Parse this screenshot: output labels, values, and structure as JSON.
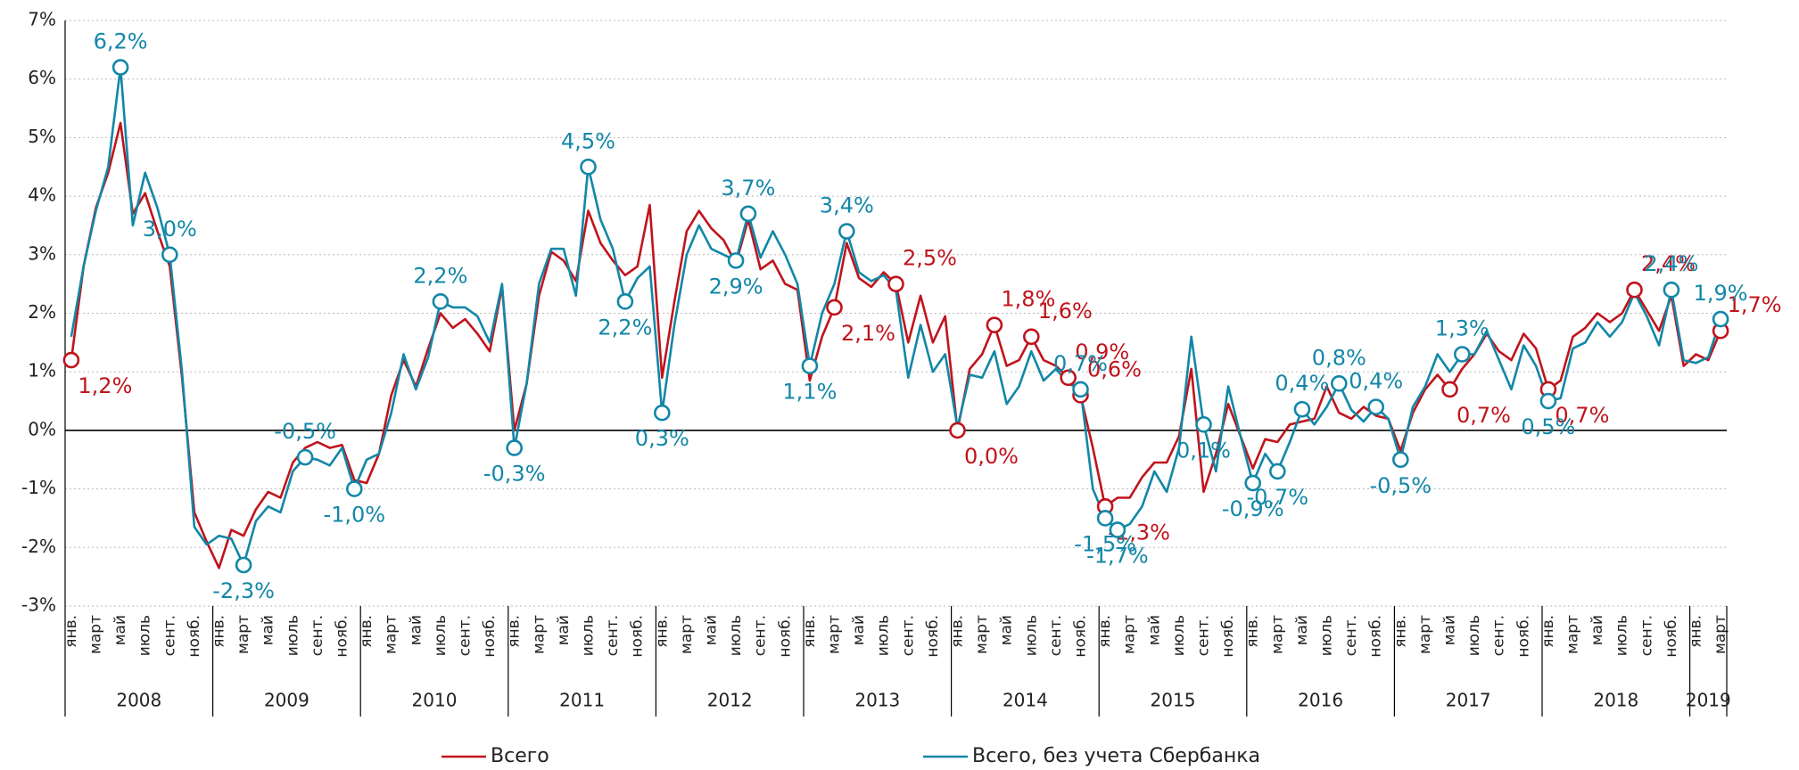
{
  "chart_data": {
    "type": "line",
    "categories": [
      "янв.",
      null,
      "март",
      null,
      "май",
      null,
      "июль",
      null,
      "сент.",
      null,
      "нояб.",
      null,
      "янв.",
      null,
      "март",
      null,
      "май",
      null,
      "июль",
      null,
      "сент.",
      null,
      "нояб.",
      null,
      "янв.",
      null,
      "март",
      null,
      "май",
      null,
      "июль",
      null,
      "сент.",
      null,
      "нояб.",
      null,
      "янв.",
      null,
      "март",
      null,
      "май",
      null,
      "июль",
      null,
      "сент.",
      null,
      "нояб.",
      null,
      "янв.",
      null,
      "март",
      null,
      "май",
      null,
      "июль",
      null,
      "сент.",
      null,
      "нояб.",
      null,
      "янв.",
      null,
      "март",
      null,
      "май",
      null,
      "июль",
      null,
      "сент.",
      null,
      "нояб.",
      null,
      "янв.",
      null,
      "март",
      null,
      "май",
      null,
      "июль",
      null,
      "сент.",
      null,
      "нояб.",
      null,
      "янв.",
      null,
      "март",
      null,
      "май",
      null,
      "июль",
      null,
      "сент.",
      null,
      "нояб.",
      null,
      "янв.",
      null,
      "март",
      null,
      "май",
      null,
      "июль",
      null,
      "сент.",
      null,
      "нояб.",
      null,
      "янв.",
      null,
      "март",
      null,
      "май",
      null,
      "июль",
      null,
      "сент.",
      null,
      "нояб.",
      null,
      "янв.",
      null,
      "март",
      null,
      "май",
      null,
      "июль",
      null,
      "сент.",
      null,
      "нояб.",
      null,
      "янв.",
      null,
      "март"
    ],
    "years": [
      "2008",
      "2009",
      "2010",
      "2011",
      "2012",
      "2013",
      "2014",
      "2015",
      "2016",
      "2017",
      "2018",
      "2019"
    ],
    "ylim": [
      -3,
      7
    ],
    "yticks": [
      {
        "value": -3,
        "label": "-3%"
      },
      {
        "value": -2,
        "label": "-2%"
      },
      {
        "value": -1,
        "label": "-1%"
      },
      {
        "value": 0,
        "label": "0%"
      },
      {
        "value": 1,
        "label": "1%"
      },
      {
        "value": 2,
        "label": "2%"
      },
      {
        "value": 3,
        "label": "3%"
      },
      {
        "value": 4,
        "label": "4%"
      },
      {
        "value": 5,
        "label": "5%"
      },
      {
        "value": 6,
        "label": "6%"
      },
      {
        "value": 7,
        "label": "7%"
      }
    ],
    "grid": true,
    "legend": "bottom",
    "series": [
      {
        "name": "Всего",
        "color": "#c0141c",
        "values": [
          1.2,
          2.8,
          3.8,
          4.4,
          5.25,
          3.7,
          4.05,
          3.4,
          2.8,
          0.9,
          -1.4,
          -1.9,
          -2.35,
          -1.7,
          -1.8,
          -1.35,
          -1.05,
          -1.15,
          -0.55,
          -0.3,
          -0.2,
          -0.3,
          -0.25,
          -0.85,
          -0.9,
          -0.4,
          0.6,
          1.2,
          0.75,
          1.4,
          2.0,
          1.75,
          1.9,
          1.65,
          1.35,
          2.45,
          0.0,
          0.8,
          2.3,
          3.05,
          2.9,
          2.55,
          3.75,
          3.2,
          2.9,
          2.65,
          2.8,
          3.85,
          0.9,
          2.2,
          3.4,
          3.75,
          3.45,
          3.25,
          2.85,
          3.6,
          2.75,
          2.9,
          2.5,
          2.4,
          0.85,
          1.6,
          2.1,
          3.2,
          2.6,
          2.45,
          2.7,
          2.5,
          1.5,
          2.3,
          1.5,
          1.95,
          0.0,
          1.05,
          1.3,
          1.8,
          1.1,
          1.2,
          1.6,
          1.2,
          1.1,
          0.9,
          0.6,
          -0.3,
          -1.3,
          -1.15,
          -1.15,
          -0.8,
          -0.55,
          -0.55,
          -0.1,
          1.05,
          -1.05,
          -0.4,
          0.45,
          -0.1,
          -0.65,
          -0.15,
          -0.2,
          0.1,
          0.15,
          0.2,
          0.75,
          0.3,
          0.2,
          0.4,
          0.25,
          0.2,
          -0.35,
          0.3,
          0.7,
          0.95,
          0.7,
          1.05,
          1.3,
          1.65,
          1.35,
          1.2,
          1.65,
          1.4,
          0.7,
          0.85,
          1.6,
          1.75,
          2.0,
          1.85,
          2.0,
          2.4,
          2.05,
          1.7,
          2.3,
          1.1,
          1.3,
          1.2,
          1.7
        ],
        "value_labels": [
          "1,2%",
          null,
          null,
          null,
          null,
          null,
          null,
          null,
          null,
          null,
          null,
          null,
          null,
          null,
          null,
          null,
          null,
          null,
          null,
          null,
          null,
          null,
          null,
          null,
          null,
          null,
          null,
          null,
          null,
          null,
          null,
          null,
          null,
          null,
          null,
          null,
          null,
          null,
          null,
          null,
          null,
          null,
          null,
          null,
          null,
          null,
          null,
          null,
          null,
          null,
          null,
          null,
          null,
          null,
          null,
          null,
          null,
          null,
          null,
          null,
          null,
          null,
          "2,1%",
          null,
          null,
          null,
          null,
          "2,5%",
          null,
          null,
          null,
          null,
          "0,0%",
          null,
          null,
          "1,8%",
          null,
          null,
          "1,6%",
          null,
          null,
          "0,9%",
          "0,6%",
          null,
          "-1,3%",
          null,
          null,
          null,
          null,
          null,
          null,
          null,
          null,
          null,
          null,
          null,
          null,
          null,
          null,
          null,
          null,
          null,
          null,
          null,
          null,
          null,
          null,
          null,
          null,
          null,
          null,
          null,
          "0,7%",
          null,
          null,
          null,
          null,
          null,
          null,
          null,
          "0,7%",
          null,
          null,
          null,
          null,
          null,
          null,
          "2,4%",
          null,
          null,
          null,
          null,
          null,
          null,
          "1,7%"
        ]
      },
      {
        "name": "Всего, без учета Сбербанка",
        "color": "#1287a8",
        "values": [
          1.6,
          2.8,
          3.75,
          4.5,
          6.2,
          3.5,
          4.4,
          3.8,
          3.0,
          1.0,
          -1.65,
          -1.95,
          -1.8,
          -1.85,
          -2.3,
          -1.55,
          -1.3,
          -1.4,
          -0.7,
          -0.46,
          -0.5,
          -0.6,
          -0.3,
          -1.0,
          -0.5,
          -0.4,
          0.3,
          1.3,
          0.7,
          1.25,
          2.2,
          2.1,
          2.1,
          1.95,
          1.5,
          2.5,
          -0.3,
          0.8,
          2.5,
          3.1,
          3.1,
          2.3,
          4.5,
          3.6,
          3.1,
          2.2,
          2.6,
          2.8,
          0.3,
          1.8,
          3.0,
          3.5,
          3.1,
          3.0,
          2.9,
          3.7,
          2.95,
          3.4,
          3.0,
          2.5,
          1.1,
          2.0,
          2.5,
          3.4,
          2.7,
          2.55,
          2.65,
          2.4,
          0.9,
          1.8,
          1.0,
          1.3,
          0.05,
          0.95,
          0.9,
          1.35,
          0.45,
          0.75,
          1.35,
          0.85,
          1.05,
          0.8,
          0.7,
          -1.0,
          -1.5,
          -1.7,
          -1.6,
          -1.3,
          -0.7,
          -1.05,
          -0.3,
          1.6,
          0.1,
          -0.7,
          0.75,
          -0.1,
          -0.9,
          -0.4,
          -0.7,
          -0.2,
          0.36,
          0.1,
          0.4,
          0.8,
          0.35,
          0.15,
          0.4,
          0.2,
          -0.5,
          0.4,
          0.75,
          1.3,
          1.0,
          1.3,
          1.3,
          1.7,
          1.2,
          0.7,
          1.45,
          1.1,
          0.5,
          0.55,
          1.4,
          1.5,
          1.85,
          1.6,
          1.85,
          2.35,
          1.95,
          1.45,
          2.4,
          1.2,
          1.15,
          1.25,
          1.9
        ],
        "value_labels": [
          null,
          null,
          null,
          null,
          "6,2%",
          null,
          null,
          null,
          "3,0%",
          null,
          null,
          null,
          null,
          null,
          "-2,3%",
          null,
          null,
          null,
          null,
          "-0,5%",
          null,
          null,
          null,
          "-1,0%",
          null,
          null,
          null,
          null,
          null,
          null,
          "2,2%",
          null,
          null,
          null,
          null,
          null,
          "-0,3%",
          null,
          null,
          null,
          null,
          null,
          "4,5%",
          null,
          null,
          "2,2%",
          null,
          null,
          "0,3%",
          null,
          null,
          null,
          null,
          null,
          "2,9%",
          "3,7%",
          null,
          null,
          null,
          null,
          "1,1%",
          null,
          null,
          "3,4%",
          null,
          null,
          null,
          null,
          null,
          null,
          null,
          null,
          null,
          null,
          null,
          null,
          null,
          null,
          null,
          null,
          null,
          null,
          "0,7%",
          null,
          "-1,5%",
          "-1,7%",
          null,
          null,
          null,
          null,
          null,
          null,
          "0,1%",
          null,
          null,
          null,
          "-0,9%",
          null,
          "-0,7%",
          null,
          "0,4%",
          null,
          null,
          "0,8%",
          null,
          null,
          "0,4%",
          null,
          "-0,5%",
          null,
          null,
          null,
          null,
          "1,3%",
          null,
          null,
          null,
          null,
          null,
          null,
          "0,5%",
          null,
          null,
          null,
          null,
          null,
          null,
          null,
          null,
          null,
          "2,4%",
          null,
          null,
          null,
          "1,9%"
        ]
      }
    ]
  }
}
